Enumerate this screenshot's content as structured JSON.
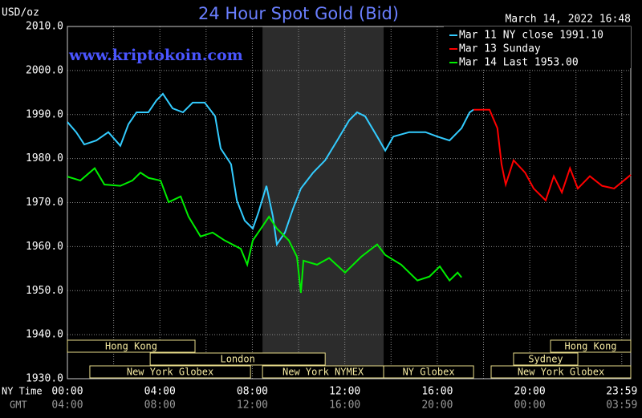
{
  "chart_data": {
    "type": "line",
    "title": "24 Hour Spot Gold (Bid)",
    "timestamp": "March 14, 2022 16:48",
    "y_unit": "USD/oz",
    "watermark": "www.kriptokoin.com",
    "x_row_label": "NY Time",
    "x2_row_label": "GMT",
    "xlim": [
      0,
      24.37
    ],
    "ylim": [
      1930,
      2010
    ],
    "yticks": [
      {
        "value": 1930,
        "label": "1930.0"
      },
      {
        "value": 1940,
        "label": "1940.0"
      },
      {
        "value": 1950,
        "label": "1950.0"
      },
      {
        "value": 1960,
        "label": "1960.0"
      },
      {
        "value": 1970,
        "label": "1970.0"
      },
      {
        "value": 1980,
        "label": "1980.0"
      },
      {
        "value": 1990,
        "label": "1990.0"
      },
      {
        "value": 2000,
        "label": "2000.0"
      },
      {
        "value": 2010,
        "label": "2010.0"
      }
    ],
    "xticks": [
      {
        "value": 0,
        "label": "00:00"
      },
      {
        "value": 4,
        "label": "04:00"
      },
      {
        "value": 8,
        "label": "08:00"
      },
      {
        "value": 12,
        "label": "12:00"
      },
      {
        "value": 16,
        "label": "16:00"
      },
      {
        "value": 20,
        "label": "20:00"
      },
      {
        "value": 23.98,
        "label": "23:59"
      }
    ],
    "gmt_labels": [
      "04:00",
      "08:00",
      "12:00",
      "16:00",
      "20:00",
      "00:00",
      "03:59"
    ],
    "xminor": [
      2,
      6,
      10,
      14,
      18,
      22
    ],
    "grid": true,
    "highlight": [
      8.44,
      13.68
    ],
    "series": [
      {
        "name": "Mar 11 NY close 1991.10",
        "color": "#33ccff",
        "x": [
          0,
          0.38,
          0.73,
          1.25,
          1.77,
          2.29,
          2.64,
          2.99,
          3.5,
          3.85,
          4.13,
          4.55,
          5.0,
          5.42,
          5.94,
          6.39,
          6.63,
          7.08,
          7.33,
          7.67,
          8.02,
          8.26,
          8.61,
          8.89,
          9.06,
          9.41,
          9.76,
          10.1,
          10.63,
          11.15,
          11.67,
          12.19,
          12.53,
          12.88,
          13.4,
          13.75,
          14.1,
          14.79,
          15.49,
          16.0,
          16.53,
          17.05,
          17.4,
          17.57
        ],
        "values": [
          1988.3,
          1986,
          1983.2,
          1984.1,
          1986,
          1982.9,
          1987.8,
          1990.5,
          1990.5,
          1993.2,
          1994.7,
          1991.4,
          1990.5,
          1992.7,
          1992.7,
          1989.6,
          1982.3,
          1978.7,
          1970.5,
          1965.9,
          1964.1,
          1967.7,
          1973.8,
          1966.8,
          1960.5,
          1963.2,
          1968.6,
          1973.2,
          1976.8,
          1979.6,
          1984.1,
          1988.7,
          1990.5,
          1989.6,
          1985,
          1981.8,
          1985,
          1986,
          1986,
          1985,
          1984.1,
          1986.9,
          1990.5,
          1991.1
        ]
      },
      {
        "name": "Mar 13 Sunday",
        "color": "#ff0000",
        "x": [
          17.57,
          18.26,
          18.6,
          18.78,
          18.96,
          19.3,
          19.8,
          20.17,
          20.69,
          21.04,
          21.39,
          21.74,
          22.08,
          22.6,
          23.13,
          23.65,
          24.37
        ],
        "values": [
          1991.1,
          1991.1,
          1986.9,
          1978.7,
          1974.1,
          1979.6,
          1976.8,
          1973.2,
          1970.5,
          1976,
          1972.3,
          1977.8,
          1973.2,
          1976,
          1973.8,
          1973.2,
          1976.3
        ]
      },
      {
        "name": "Mar 14 Last 1953.00",
        "color": "#00ee00",
        "x": [
          0,
          0.56,
          1.18,
          1.6,
          2.29,
          2.81,
          3.16,
          3.51,
          4.03,
          4.38,
          4.9,
          5.24,
          5.76,
          6.28,
          6.8,
          7.5,
          7.78,
          8.02,
          8.37,
          8.72,
          9.06,
          9.58,
          9.93,
          10.1,
          10.21,
          10.8,
          11.32,
          12.01,
          12.71,
          13.4,
          13.75,
          14.44,
          15.14,
          15.66,
          16.11,
          16.53,
          16.88,
          17.05
        ],
        "values": [
          1975.9,
          1975,
          1977.8,
          1974.1,
          1973.8,
          1975,
          1976.8,
          1975.6,
          1975,
          1970.1,
          1971.4,
          1966.8,
          1962.3,
          1963.2,
          1961.4,
          1959.5,
          1955.9,
          1961.4,
          1964.1,
          1966.8,
          1964.1,
          1961.4,
          1957.7,
          1949.5,
          1956.8,
          1955.9,
          1957.4,
          1954.1,
          1957.7,
          1960.5,
          1958.1,
          1955.9,
          1952.3,
          1953.2,
          1955.5,
          1952.3,
          1954.1,
          1953
        ]
      }
    ],
    "session_rows": [
      [
        {
          "label": "Hong Kong",
          "start": 0,
          "end": 5.52
        },
        {
          "label": "Hong Kong",
          "start": 20.9,
          "end": 24.37
        }
      ],
      [
        {
          "label": "London",
          "start": 3.58,
          "end": 11.15
        },
        {
          "label": "Sydney",
          "start": 19.3,
          "end": 22.08
        }
      ],
      [
        {
          "label": "New York Globex",
          "start": 0.97,
          "end": 7.92
        },
        {
          "label": "New York NYMEX",
          "start": 8.44,
          "end": 13.68
        },
        {
          "label": "NY Globex",
          "start": 13.68,
          "end": 17.57
        },
        {
          "label": "New York Globex",
          "start": 18.33,
          "end": 24.37
        }
      ]
    ]
  }
}
